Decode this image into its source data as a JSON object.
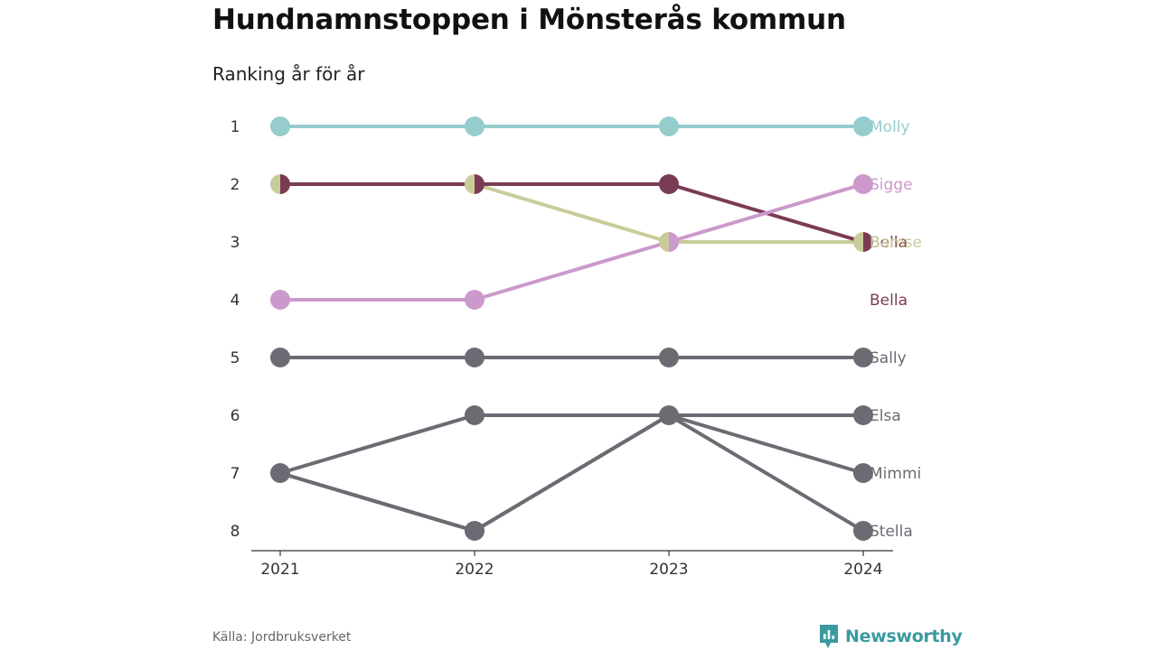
{
  "title": "Hundnamnstoppen i Mönsterås kommun",
  "subtitle": "Ranking år för år",
  "source": "Källa: Jordbruksverket",
  "brand": {
    "name": "Newsworthy",
    "icon": "bar-chart-icon",
    "color": "#3a9aa0"
  },
  "chart_data": {
    "type": "line",
    "x": [
      "2021",
      "2022",
      "2023",
      "2024"
    ],
    "y_ticks": [
      "1",
      "2",
      "3",
      "4",
      "5",
      "6",
      "7",
      "8"
    ],
    "ylim": [
      1,
      8
    ],
    "y_inverted": true,
    "grid": false,
    "series": [
      {
        "name": "Molly",
        "values": [
          1,
          1,
          1,
          1
        ],
        "color": "#96cccc"
      },
      {
        "name": "Sigge",
        "values": [
          4,
          4,
          3,
          2
        ],
        "color": "#cc99cc"
      },
      {
        "name": "Bella",
        "values": [
          2,
          2,
          2,
          3
        ],
        "color": "#7a3b55"
      },
      {
        "name": "Bamse",
        "values": [
          2,
          2,
          3,
          3
        ],
        "color": "#c9cc99"
      },
      {
        "name": "Bella",
        "label_only": true,
        "label_rank": 4,
        "color": "#7a3b55"
      },
      {
        "name": "Sally",
        "values": [
          5,
          5,
          5,
          5
        ],
        "color": "#6b6b73"
      },
      {
        "name": "Elsa",
        "values": [
          7,
          6,
          6,
          6
        ],
        "color": "#6b6b73"
      },
      {
        "name": "Mimmi",
        "values": [
          7,
          8,
          6,
          7
        ],
        "color": "#6b6b73"
      },
      {
        "name": "Stella",
        "values": [
          7,
          8,
          6,
          8
        ],
        "color": "#6b6b73"
      }
    ]
  }
}
